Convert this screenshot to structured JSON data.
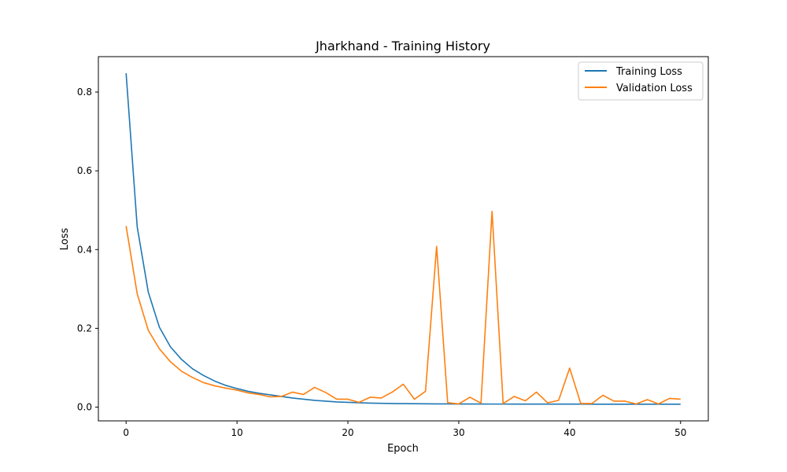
{
  "chart_data": {
    "type": "line",
    "title": "Jharkhand - Training History",
    "xlabel": "Epoch",
    "ylabel": "Loss",
    "xlim": [
      -2.5,
      52.5
    ],
    "ylim": [
      -0.035,
      0.89
    ],
    "xticks": [
      0,
      10,
      20,
      30,
      40,
      50
    ],
    "xtick_labels": [
      "0",
      "10",
      "20",
      "30",
      "40",
      "50"
    ],
    "yticks": [
      0.0,
      0.2,
      0.4,
      0.6,
      0.8
    ],
    "ytick_labels": [
      "0.0",
      "0.2",
      "0.4",
      "0.6",
      "0.8"
    ],
    "grid": false,
    "legend_position": "top-right",
    "x": [
      0,
      1,
      2,
      3,
      4,
      5,
      6,
      7,
      8,
      9,
      10,
      11,
      12,
      13,
      14,
      15,
      16,
      17,
      18,
      19,
      20,
      21,
      22,
      23,
      24,
      25,
      26,
      27,
      28,
      29,
      30,
      31,
      32,
      33,
      34,
      35,
      36,
      37,
      38,
      39,
      40,
      41,
      42,
      43,
      44,
      45,
      46,
      47,
      48,
      49,
      50
    ],
    "series": [
      {
        "name": "Training Loss",
        "color": "#1f77b4",
        "values": [
          0.848,
          0.458,
          0.292,
          0.203,
          0.153,
          0.121,
          0.097,
          0.08,
          0.066,
          0.055,
          0.047,
          0.04,
          0.035,
          0.031,
          0.027,
          0.023,
          0.02,
          0.017,
          0.015,
          0.013,
          0.012,
          0.011,
          0.01,
          0.0095,
          0.009,
          0.0088,
          0.0085,
          0.0083,
          0.0081,
          0.008,
          0.0079,
          0.0078,
          0.0078,
          0.0077,
          0.0077,
          0.0076,
          0.0076,
          0.0076,
          0.0075,
          0.0075,
          0.0075,
          0.0075,
          0.0074,
          0.0074,
          0.0074,
          0.0074,
          0.0074,
          0.0074,
          0.0074,
          0.0074,
          0.0074
        ]
      },
      {
        "name": "Validation Loss",
        "color": "#ff7f0e",
        "values": [
          0.46,
          0.288,
          0.195,
          0.148,
          0.115,
          0.091,
          0.075,
          0.062,
          0.054,
          0.048,
          0.043,
          0.036,
          0.032,
          0.026,
          0.027,
          0.038,
          0.032,
          0.05,
          0.037,
          0.02,
          0.02,
          0.012,
          0.025,
          0.023,
          0.038,
          0.058,
          0.02,
          0.04,
          0.408,
          0.011,
          0.008,
          0.025,
          0.01,
          0.497,
          0.009,
          0.027,
          0.016,
          0.038,
          0.011,
          0.017,
          0.099,
          0.009,
          0.009,
          0.03,
          0.015,
          0.015,
          0.008,
          0.019,
          0.008,
          0.022,
          0.02
        ]
      }
    ]
  }
}
